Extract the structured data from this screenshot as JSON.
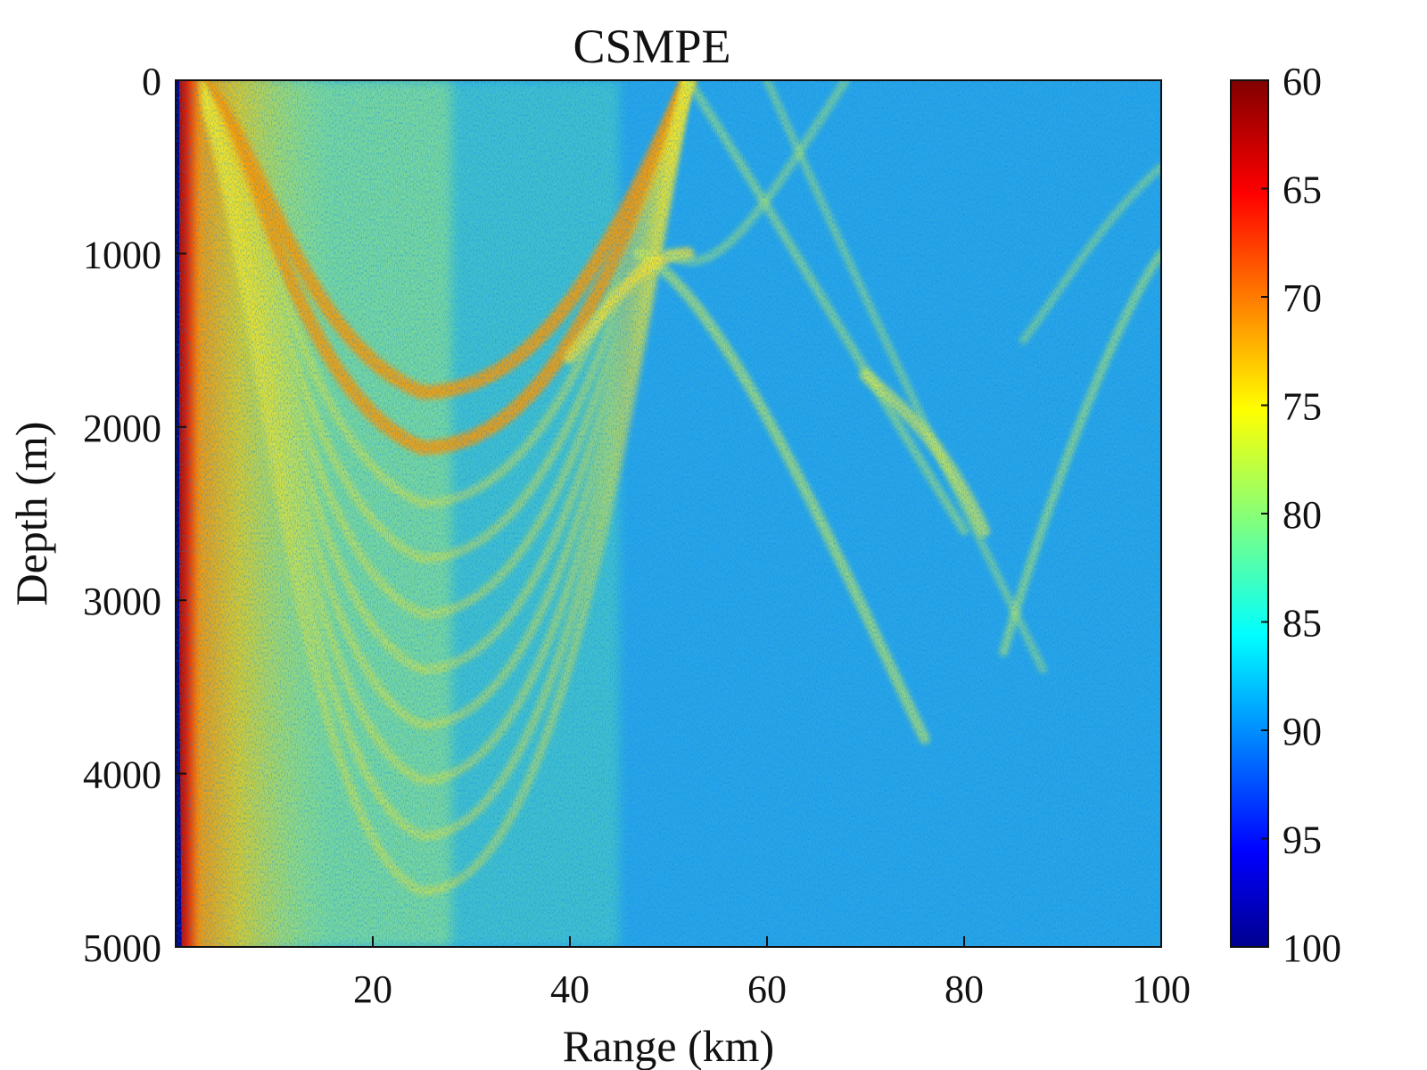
{
  "chart_data": {
    "type": "heatmap",
    "title": "CSMPE",
    "xlabel": "Range (km)",
    "ylabel": "Depth (m)",
    "xlim": [
      0,
      100
    ],
    "ylim": [
      0,
      5000
    ],
    "y_reversed": true,
    "xticks": [
      20,
      40,
      60,
      80,
      100
    ],
    "xtick_labels": [
      "20",
      "40",
      "60",
      "80",
      "100"
    ],
    "yticks": [
      0,
      1000,
      2000,
      3000,
      4000,
      5000
    ],
    "ytick_labels": [
      "0",
      "1000",
      "2000",
      "3000",
      "4000",
      "5000"
    ],
    "colorbar": {
      "range": [
        60,
        100
      ],
      "reversed": true,
      "ticks": [
        60,
        65,
        70,
        75,
        80,
        85,
        90,
        95,
        100
      ],
      "tick_labels": [
        "60",
        "65",
        "70",
        "75",
        "80",
        "85",
        "90",
        "95",
        "100"
      ],
      "colormap": "jet"
    },
    "grid": false,
    "features": [
      {
        "name": "source-near-field",
        "range_km": [
          0,
          3
        ],
        "level": 62
      },
      {
        "name": "first-convergence-arc",
        "peak_depth_m": 1800,
        "peak_range_km": 25,
        "level": 74
      },
      {
        "name": "second-arc",
        "peak_depth_m": 1000,
        "peak_range_km": 50,
        "level": 77
      },
      {
        "name": "third-arc",
        "peak_depth_m": 1000,
        "peak_range_km": 100,
        "level": 78
      },
      {
        "name": "background",
        "level": 86
      }
    ]
  },
  "colors": {
    "background": "#ffffff",
    "axis": "#111111",
    "jet_low": "#00008f",
    "jet_high": "#800000",
    "field_base": "#2aa5e6"
  }
}
